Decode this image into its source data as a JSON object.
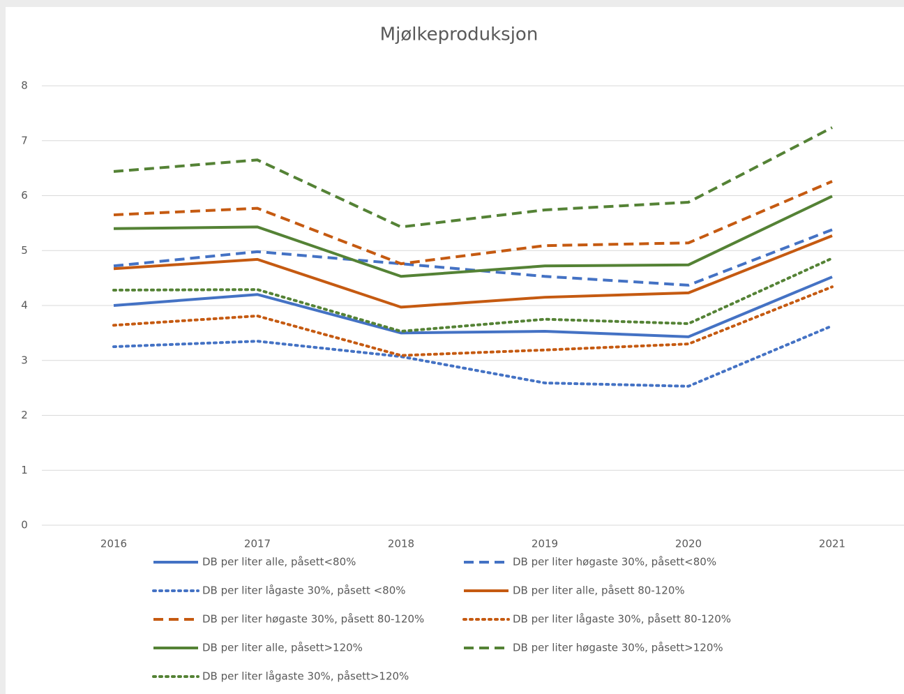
{
  "chart_data": {
    "type": "line",
    "title": "Mjølkeproduksjon",
    "categories": [
      "2016",
      "2017",
      "2018",
      "2019",
      "2020",
      "2021"
    ],
    "ylim": [
      0,
      8
    ],
    "yticks": [
      0,
      1,
      2,
      3,
      4,
      5,
      6,
      7,
      8
    ],
    "grid": true,
    "series": [
      {
        "name": "DB per liter alle, påsett<80%",
        "color": "#4472c4",
        "style": "solid",
        "values": [
          4.0,
          4.2,
          3.5,
          3.53,
          3.43,
          4.52
        ]
      },
      {
        "name": "DB per liter høgaste 30%, påsett<80%",
        "color": "#4472c4",
        "style": "dashed",
        "values": [
          4.72,
          4.98,
          4.76,
          4.53,
          4.37,
          5.38
        ]
      },
      {
        "name": "DB per liter lågaste 30%, påsett <80%",
        "color": "#4472c4",
        "style": "dotted",
        "values": [
          3.25,
          3.35,
          3.07,
          2.59,
          2.53,
          3.63
        ]
      },
      {
        "name": "DB per liter alle, påsett 80-120%",
        "color": "#c55a11",
        "style": "solid",
        "values": [
          4.67,
          4.84,
          3.97,
          4.15,
          4.23,
          5.27
        ]
      },
      {
        "name": "DB per liter høgaste 30%, påsett 80-120%",
        "color": "#c55a11",
        "style": "dashed",
        "values": [
          5.65,
          5.77,
          4.76,
          5.09,
          5.14,
          6.26
        ]
      },
      {
        "name": "DB per liter lågaste 30%, påsett 80-120%",
        "color": "#c55a11",
        "style": "dotted",
        "values": [
          3.64,
          3.81,
          3.09,
          3.19,
          3.3,
          4.34
        ]
      },
      {
        "name": "DB per liter alle, påsett>120%",
        "color": "#548235",
        "style": "solid",
        "values": [
          5.4,
          5.43,
          4.53,
          4.72,
          4.74,
          5.99
        ]
      },
      {
        "name": "DB per liter høgaste 30%, påsett>120%",
        "color": "#548235",
        "style": "dashed",
        "values": [
          6.44,
          6.65,
          5.43,
          5.74,
          5.88,
          7.24
        ]
      },
      {
        "name": "DB per liter lågaste 30%, påsett>120%",
        "color": "#548235",
        "style": "dotted",
        "values": [
          4.28,
          4.29,
          3.53,
          3.75,
          3.67,
          4.86
        ]
      }
    ]
  }
}
